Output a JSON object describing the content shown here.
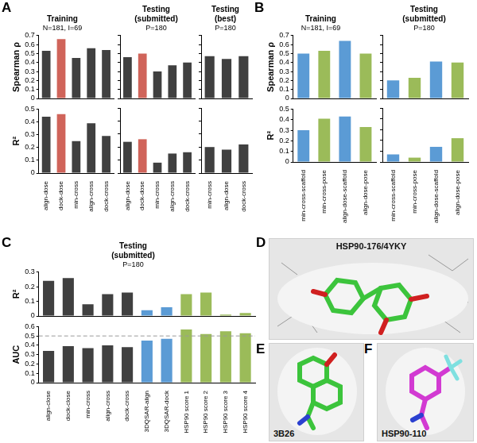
{
  "chart_data": [
    {
      "panel": "A",
      "type": "bar",
      "title": "Training",
      "subtitle": "N=181, I=69",
      "y_label": "Spearman ρ",
      "categories": [
        "align-dose",
        "dock-dose",
        "min-cross",
        "align-cross",
        "dock-cross"
      ],
      "values": [
        0.53,
        0.66,
        0.45,
        0.56,
        0.54
      ],
      "colors": [
        "#404040",
        "#d0645a",
        "#404040",
        "#404040",
        "#404040"
      ],
      "ylim": [
        0,
        0.7
      ],
      "yticks": [
        0,
        0.1,
        0.2,
        0.3,
        0.4,
        0.5,
        0.6,
        0.7
      ],
      "tick_labels": "y"
    },
    {
      "panel": "A",
      "type": "bar",
      "title": [
        "Testing",
        "(submitted)"
      ],
      "subtitle": "P=180",
      "categories": [
        "align-dose",
        "dock-dose",
        "min-cross",
        "align-cross",
        "dock-cross"
      ],
      "values": [
        0.46,
        0.5,
        0.3,
        0.37,
        0.4
      ],
      "colors": [
        "#404040",
        "#d0645a",
        "#404040",
        "#404040",
        "#404040"
      ],
      "ylim": [
        0,
        0.7
      ],
      "yticks": [
        0,
        0.1,
        0.2,
        0.3,
        0.4,
        0.5,
        0.6,
        0.7
      ],
      "tick_labels": false
    },
    {
      "panel": "A",
      "type": "bar",
      "title": [
        "Testing",
        "(best)"
      ],
      "subtitle": "P=180",
      "categories": [
        "min-cross",
        "align-dose",
        "dock-cross"
      ],
      "values": [
        0.47,
        0.44,
        0.47
      ],
      "colors": [
        "#404040",
        "#404040",
        "#404040"
      ],
      "ylim": [
        0,
        0.7
      ],
      "yticks": [
        0,
        0.1,
        0.2,
        0.3,
        0.4,
        0.5,
        0.6,
        0.7
      ],
      "tick_labels": false
    },
    {
      "panel": "A",
      "type": "bar",
      "y_label": "R²",
      "categories": [
        "align-dose",
        "dock-dose",
        "min-cross",
        "align-cross",
        "dock-cross"
      ],
      "values": [
        0.44,
        0.46,
        0.25,
        0.39,
        0.29
      ],
      "colors": [
        "#404040",
        "#d0645a",
        "#404040",
        "#404040",
        "#404040"
      ],
      "ylim": [
        0,
        0.5
      ],
      "yticks": [
        0,
        0.1,
        0.2,
        0.3,
        0.4,
        0.5
      ]
    },
    {
      "panel": "A",
      "type": "bar",
      "categories": [
        "align-dose",
        "dock-dose",
        "min-cross",
        "align-cross",
        "dock-cross"
      ],
      "values": [
        0.24,
        0.26,
        0.08,
        0.15,
        0.16
      ],
      "colors": [
        "#404040",
        "#d0645a",
        "#404040",
        "#404040",
        "#404040"
      ],
      "ylim": [
        0,
        0.5
      ],
      "yticks": [
        0,
        0.1,
        0.2,
        0.3,
        0.4,
        0.5
      ],
      "tick_labels": "x"
    },
    {
      "panel": "A",
      "type": "bar",
      "categories": [
        "min-cross",
        "align-dose",
        "dock-cross"
      ],
      "values": [
        0.2,
        0.18,
        0.22
      ],
      "colors": [
        "#404040",
        "#404040",
        "#404040"
      ],
      "ylim": [
        0,
        0.5
      ],
      "yticks": [
        0,
        0.1,
        0.2,
        0.3,
        0.4,
        0.5
      ],
      "tick_labels": "x"
    },
    {
      "panel": "B",
      "type": "bar",
      "title": "Training",
      "subtitle": "N=181, I=69",
      "y_label": "Spearman ρ",
      "categories": [
        "min-cross-scaffold",
        "min-cross-pose",
        "align-dose-scaffold",
        "align-dose-pose"
      ],
      "values": [
        0.5,
        0.53,
        0.64,
        0.5
      ],
      "colors": [
        "#5b9bd5",
        "#9bbb59",
        "#5b9bd5",
        "#9bbb59"
      ],
      "ylim": [
        0,
        0.7
      ],
      "yticks": [
        0,
        0.1,
        0.2,
        0.3,
        0.4,
        0.5,
        0.6,
        0.7
      ],
      "tick_labels": "y"
    },
    {
      "panel": "B",
      "type": "bar",
      "title": [
        "Testing",
        "(submitted)"
      ],
      "subtitle": "P=180",
      "categories": [
        "min-cross-scaffold",
        "min-cross-pose",
        "align-dose-scaffold",
        "align-dose-pose"
      ],
      "values": [
        0.2,
        0.23,
        0.41,
        0.4
      ],
      "colors": [
        "#5b9bd5",
        "#9bbb59",
        "#5b9bd5",
        "#9bbb59"
      ],
      "ylim": [
        0,
        0.7
      ],
      "yticks": [
        0,
        0.1,
        0.2,
        0.3,
        0.4,
        0.5,
        0.6,
        0.7
      ],
      "tick_labels": false
    },
    {
      "panel": "B",
      "type": "bar",
      "y_label": "R²",
      "categories": [
        "min-cross-scaffold",
        "min-cross-pose",
        "align-dose-scaffold",
        "align-dose-pose"
      ],
      "values": [
        0.3,
        0.41,
        0.43,
        0.33
      ],
      "colors": [
        "#5b9bd5",
        "#9bbb59",
        "#5b9bd5",
        "#9bbb59"
      ],
      "ylim": [
        0,
        0.5
      ],
      "yticks": [
        0,
        0.1,
        0.2,
        0.3,
        0.4,
        0.5
      ]
    },
    {
      "panel": "B",
      "type": "bar",
      "categories": [
        "min-cross-scaffold",
        "min-cross-pose",
        "align-dose-scaffold",
        "align-dose-pose"
      ],
      "values": [
        0.07,
        0.04,
        0.14,
        0.22
      ],
      "colors": [
        "#5b9bd5",
        "#9bbb59",
        "#5b9bd5",
        "#9bbb59"
      ],
      "ylim": [
        0,
        0.5
      ],
      "yticks": [
        0,
        0.1,
        0.2,
        0.3,
        0.4,
        0.5
      ],
      "tick_labels": "x"
    },
    {
      "panel": "C",
      "type": "bar",
      "title": [
        "Testing",
        "(submitted)"
      ],
      "subtitle": "P=180",
      "y_label": "R²",
      "categories": [
        "align-close",
        "dock-close",
        "min-cross",
        "align-cross",
        "dock-cross",
        "3DQSAR-align",
        "3DQSAR-dock",
        "HSP90 score 1",
        "HSP90 score 2",
        "HSP90 score 3",
        "HSP90 score 4"
      ],
      "values": [
        0.24,
        0.26,
        0.08,
        0.15,
        0.16,
        0.04,
        0.06,
        0.15,
        0.16,
        0.01,
        0.02
      ],
      "colors": [
        "#404040",
        "#404040",
        "#404040",
        "#404040",
        "#404040",
        "#5b9bd5",
        "#5b9bd5",
        "#9bbb59",
        "#9bbb59",
        "#9bbb59",
        "#9bbb59"
      ],
      "ylim": [
        0,
        0.3
      ],
      "yticks": [
        0,
        0.1,
        0.2,
        0.3
      ],
      "tick_labels": "y"
    },
    {
      "panel": "C",
      "type": "bar",
      "y_label": "AUC",
      "categories": [
        "align-close",
        "dock-close",
        "min-cross",
        "align-cross",
        "dock-cross",
        "3DQSAR-align",
        "3DQSAR-dock",
        "HSP90 score 1",
        "HSP90 score 2",
        "HSP90 score 3",
        "HSP90 score 4"
      ],
      "values": [
        0.34,
        0.39,
        0.37,
        0.4,
        0.38,
        0.45,
        0.47,
        0.57,
        0.52,
        0.55,
        0.53
      ],
      "colors": [
        "#404040",
        "#404040",
        "#404040",
        "#404040",
        "#404040",
        "#5b9bd5",
        "#5b9bd5",
        "#9bbb59",
        "#9bbb59",
        "#9bbb59",
        "#9bbb59"
      ],
      "ylim": [
        0,
        0.6
      ],
      "yticks": [
        0,
        0.1,
        0.2,
        0.3,
        0.4,
        0.5,
        0.6
      ],
      "hline": {
        "value": 0.5,
        "line_style": "dashed"
      }
    }
  ],
  "images": [
    {
      "panel": "D",
      "label": "HSP90-176/4YKY"
    },
    {
      "panel": "E",
      "label": "3B26"
    },
    {
      "panel": "F",
      "label": "HSP90-110"
    }
  ]
}
